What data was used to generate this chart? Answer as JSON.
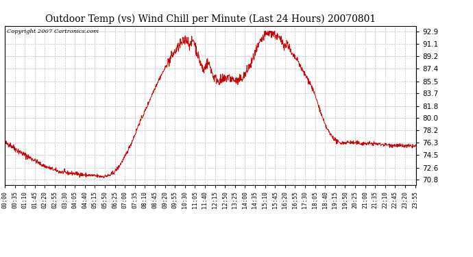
{
  "title": "Outdoor Temp (vs) Wind Chill per Minute (Last 24 Hours) 20070801",
  "copyright_text": "Copyright 2007 Cartronics.com",
  "line_color": "#cc0000",
  "background_color": "#ffffff",
  "grid_color": "#b0b0b0",
  "yticks": [
    70.8,
    72.6,
    74.5,
    76.3,
    78.2,
    80.0,
    81.8,
    83.7,
    85.5,
    87.4,
    89.2,
    91.1,
    92.9
  ],
  "ylim": [
    70.0,
    93.8
  ],
  "xtick_labels": [
    "00:00",
    "00:35",
    "01:10",
    "01:45",
    "02:20",
    "02:55",
    "03:30",
    "04:05",
    "04:40",
    "05:15",
    "05:50",
    "06:25",
    "07:00",
    "07:35",
    "08:10",
    "08:45",
    "09:20",
    "09:55",
    "10:30",
    "11:05",
    "11:40",
    "12:15",
    "12:50",
    "13:25",
    "14:00",
    "14:35",
    "15:10",
    "15:45",
    "16:20",
    "16:55",
    "17:30",
    "18:05",
    "18:40",
    "19:15",
    "19:50",
    "20:25",
    "21:00",
    "21:35",
    "22:10",
    "22:45",
    "23:20",
    "23:55"
  ],
  "figsize": [
    6.9,
    3.75
  ],
  "dpi": 100
}
